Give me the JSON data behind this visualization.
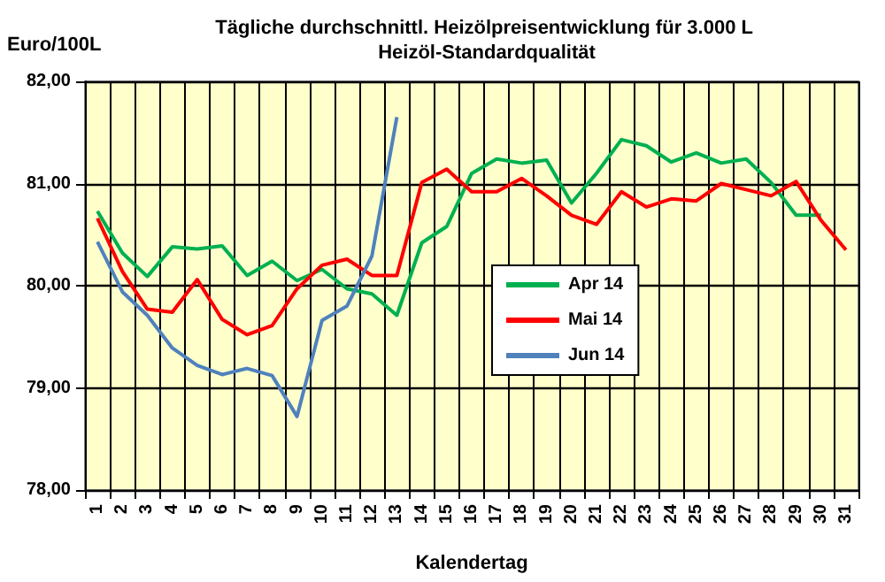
{
  "chart_data": {
    "type": "line",
    "title": "Tägliche durchschnittl. Heizölpreisentwicklung für 3.000 L Heizöl-Standardqualität",
    "xlabel": "Kalendertag",
    "ylabel": "Euro/100L",
    "categories": [
      "1",
      "2",
      "3",
      "4",
      "5",
      "6",
      "7",
      "8",
      "9",
      "10",
      "11",
      "12",
      "13",
      "14",
      "15",
      "16",
      "17",
      "18",
      "19",
      "20",
      "21",
      "22",
      "23",
      "24",
      "25",
      "26",
      "27",
      "28",
      "29",
      "30",
      "31"
    ],
    "series": [
      {
        "name": "Apr 14",
        "color": "#00b050",
        "values": [
          80.73,
          80.32,
          80.09,
          80.38,
          80.36,
          80.39,
          80.1,
          80.24,
          80.05,
          80.16,
          79.97,
          79.92,
          79.71,
          80.42,
          80.58,
          81.1,
          81.24,
          81.2,
          81.23,
          80.81,
          81.1,
          81.43,
          81.37,
          81.21,
          81.3,
          81.2,
          81.24,
          81.01,
          80.69,
          80.69,
          null
        ]
      },
      {
        "name": "Mai 14",
        "color": "#ff0000",
        "values": [
          80.66,
          80.14,
          79.77,
          79.74,
          80.06,
          79.67,
          79.52,
          79.61,
          79.97,
          80.2,
          80.26,
          80.1,
          80.1,
          81.01,
          81.14,
          80.92,
          80.92,
          81.05,
          80.88,
          80.69,
          80.6,
          80.92,
          80.77,
          80.85,
          80.83,
          81.0,
          80.94,
          80.88,
          81.02,
          80.64,
          80.35
        ]
      },
      {
        "name": "Jun 14",
        "color": "#4f81bd",
        "values": [
          80.43,
          79.94,
          79.71,
          79.39,
          79.22,
          79.13,
          79.19,
          79.12,
          78.72,
          79.66,
          79.8,
          80.29,
          81.65,
          null,
          null,
          null,
          null,
          null,
          null,
          null,
          null,
          null,
          null,
          null,
          null,
          null,
          null,
          null,
          null,
          null,
          null
        ]
      }
    ],
    "ylim": [
      78,
      82
    ],
    "yticks": [
      {
        "value": 78,
        "label": "78,00"
      },
      {
        "value": 79,
        "label": "79,00"
      },
      {
        "value": 80,
        "label": "80,00"
      },
      {
        "value": 81,
        "label": "81,00"
      },
      {
        "value": 82,
        "label": "82,00"
      }
    ],
    "grid": true,
    "legend": "center",
    "marker": "none",
    "line_style": "solid"
  }
}
